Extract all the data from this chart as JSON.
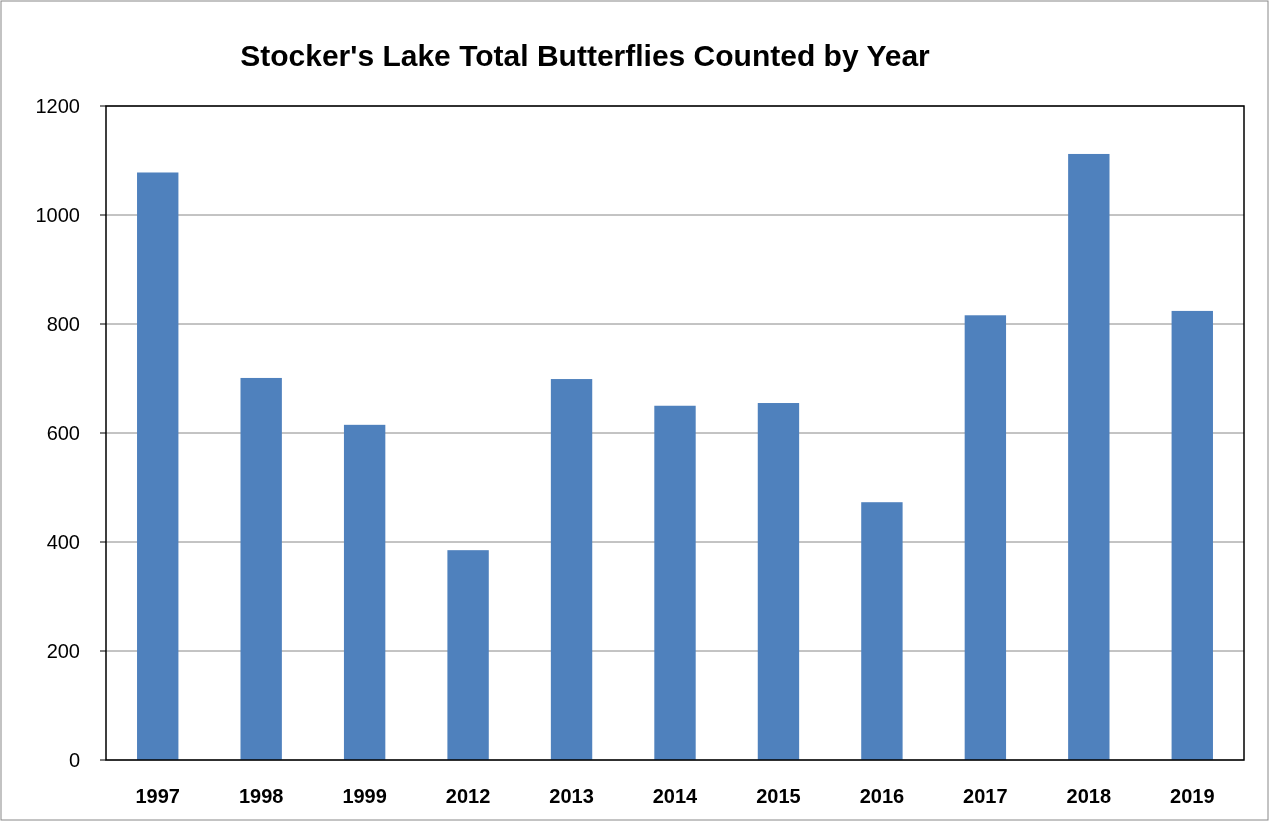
{
  "chart_data": {
    "type": "bar",
    "title": "Stocker's Lake Total Butterflies Counted by Year",
    "categories": [
      "1997",
      "1998",
      "1999",
      "2012",
      "2013",
      "2014",
      "2015",
      "2016",
      "2017",
      "2018",
      "2019"
    ],
    "values": [
      1078,
      701,
      615,
      385,
      699,
      650,
      655,
      473,
      816,
      1112,
      824
    ],
    "color": "#4f81bd",
    "ylim": [
      0,
      1200
    ],
    "yticks": [
      0,
      200,
      400,
      600,
      800,
      1000,
      1200
    ],
    "grid": "y"
  }
}
